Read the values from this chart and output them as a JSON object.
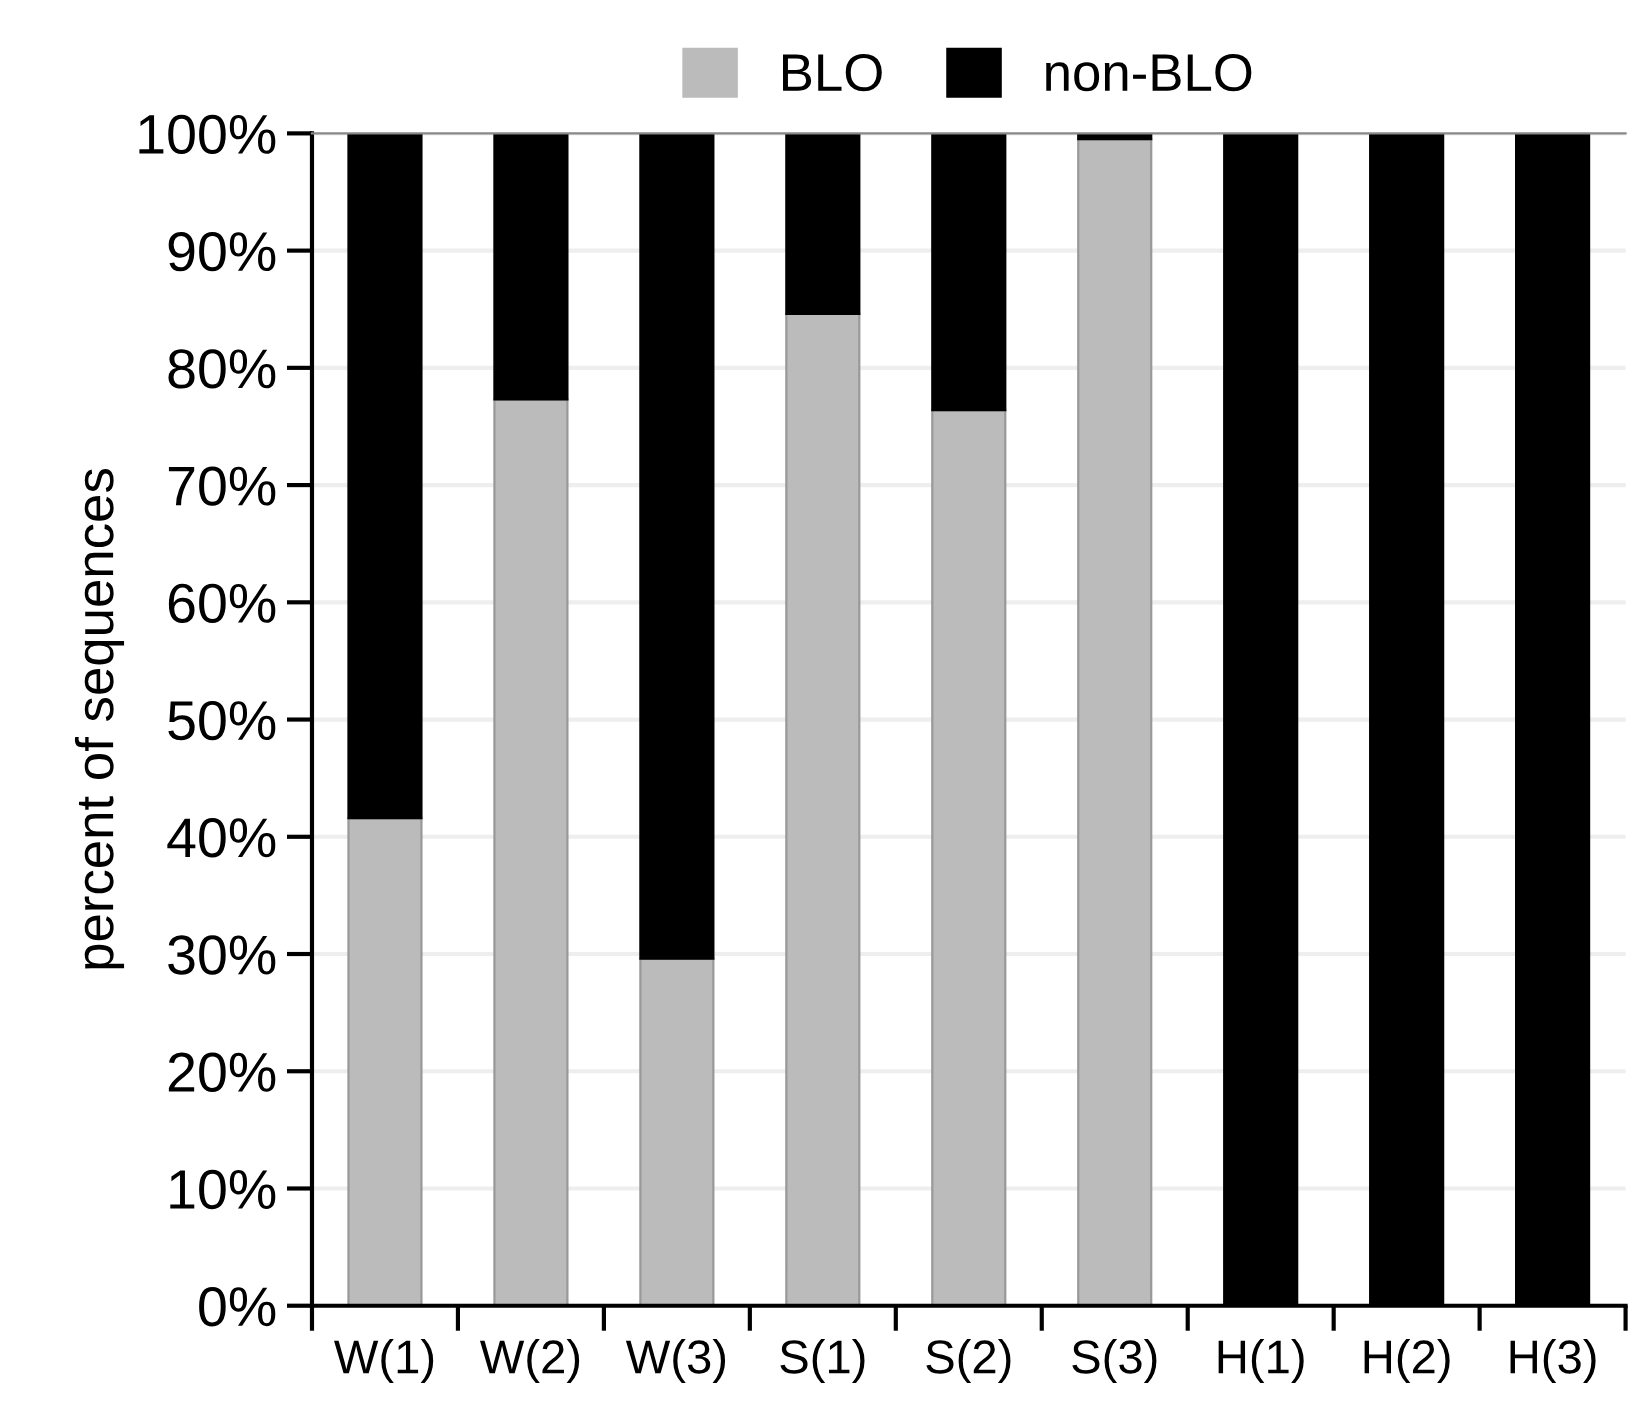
{
  "chart_data": {
    "type": "bar",
    "stacked": true,
    "ylabel": "percent of sequences",
    "categories": [
      "W(1)",
      "W(2)",
      "W(3)",
      "S(1)",
      "S(2)",
      "S(3)",
      "H(1)",
      "H(2)",
      "H(3)"
    ],
    "series": [
      {
        "name": "BLO",
        "color": "#bbbbbb",
        "values": [
          41.6,
          77.3,
          29.6,
          84.6,
          76.4,
          99.5,
          0,
          0,
          0
        ]
      },
      {
        "name": "non-BLO",
        "color": "#000000",
        "values": [
          58.4,
          22.7,
          70.4,
          15.4,
          23.6,
          0.5,
          100,
          100,
          100
        ]
      }
    ],
    "ylim": [
      0,
      100
    ],
    "yticks": [
      {
        "value": 0,
        "label": "0%"
      },
      {
        "value": 10,
        "label": "10%"
      },
      {
        "value": 20,
        "label": "20%"
      },
      {
        "value": 30,
        "label": "30%"
      },
      {
        "value": 40,
        "label": "40%"
      },
      {
        "value": 50,
        "label": "50%"
      },
      {
        "value": 60,
        "label": "60%"
      },
      {
        "value": 70,
        "label": "70%"
      },
      {
        "value": 80,
        "label": "80%"
      },
      {
        "value": 90,
        "label": "90%"
      },
      {
        "value": 100,
        "label": "100%"
      }
    ],
    "grid": "y",
    "legend": "top"
  }
}
